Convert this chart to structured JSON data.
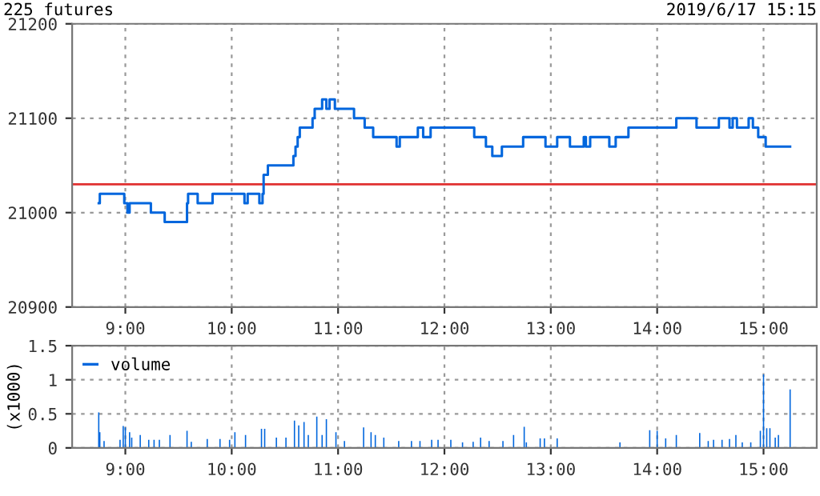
{
  "chart_data": [
    {
      "type": "step",
      "title": "225 futures",
      "annotations": [
        "2019/6/17 15:15"
      ],
      "x": [
        8.75,
        8.76,
        8.99,
        9.02,
        9.04,
        9.24,
        9.37,
        9.58,
        9.59,
        9.68,
        9.82,
        10.12,
        10.15,
        10.26,
        10.29,
        10.3,
        10.34,
        10.58,
        10.6,
        10.62,
        10.64,
        10.76,
        10.78,
        10.85,
        10.89,
        10.92,
        10.97,
        11.15,
        11.25,
        11.33,
        11.55,
        11.58,
        11.75,
        11.8,
        11.87,
        12.28,
        12.39,
        12.45,
        12.54,
        12.74,
        12.95,
        13.06,
        13.18,
        13.31,
        13.33,
        13.37,
        13.55,
        13.61,
        13.73,
        14.18,
        14.37,
        14.58,
        14.68,
        14.71,
        14.75,
        14.86,
        14.9,
        14.95,
        15.02,
        15.25
      ],
      "series": [
        {
          "color": "#0066dd",
          "values": [
            21010,
            21020,
            21010,
            21000,
            21010,
            21000,
            20990,
            21010,
            21020,
            21010,
            21020,
            21010,
            21020,
            21010,
            21020,
            21040,
            21050,
            21060,
            21070,
            21080,
            21090,
            21100,
            21110,
            21120,
            21110,
            21120,
            21110,
            21100,
            21090,
            21080,
            21070,
            21080,
            21090,
            21080,
            21090,
            21080,
            21070,
            21060,
            21070,
            21080,
            21070,
            21080,
            21070,
            21080,
            21070,
            21080,
            21070,
            21080,
            21090,
            21100,
            21090,
            21100,
            21090,
            21100,
            21090,
            21100,
            21090,
            21080,
            21070,
            21070
          ]
        }
      ],
      "xlim": [
        8.5,
        15.5
      ],
      "ylim": [
        20900,
        21200
      ],
      "xticks": [
        {
          "value": 9,
          "label": "9:00"
        },
        {
          "value": 10,
          "label": "10:00"
        },
        {
          "value": 11,
          "label": "11:00"
        },
        {
          "value": 12,
          "label": "12:00"
        },
        {
          "value": 13,
          "label": "13:00"
        },
        {
          "value": 14,
          "label": "14:00"
        },
        {
          "value": 15,
          "label": "15:00"
        }
      ],
      "yticks": [
        20900,
        21000,
        21100,
        21200
      ],
      "ref_lines": [
        {
          "axis": "y",
          "value": 21030,
          "label": null,
          "color": "#e03030"
        }
      ],
      "grid": true,
      "legend": false,
      "line_style": "solid"
    },
    {
      "type": "bar",
      "ylabel": "(x1000)",
      "x": [
        8.75,
        8.76,
        8.8,
        8.95,
        8.98,
        9.0,
        9.04,
        9.06,
        9.14,
        9.22,
        9.27,
        9.32,
        9.42,
        9.58,
        9.62,
        9.77,
        9.89,
        9.98,
        10.03,
        10.13,
        10.28,
        10.31,
        10.42,
        10.51,
        10.59,
        10.63,
        10.68,
        10.72,
        10.8,
        10.85,
        10.89,
        10.98,
        11.06,
        11.24,
        11.31,
        11.35,
        11.43,
        11.57,
        11.69,
        11.77,
        11.88,
        11.94,
        12.06,
        12.17,
        12.27,
        12.34,
        12.42,
        12.55,
        12.65,
        12.75,
        12.77,
        12.9,
        12.94,
        13.06,
        13.65,
        13.93,
        14.0,
        14.08,
        14.18,
        14.4,
        14.48,
        14.53,
        14.61,
        14.68,
        14.74,
        14.8,
        14.88,
        14.97,
        15.0,
        15.03,
        15.06,
        15.11,
        15.14,
        15.25
      ],
      "series": [
        {
          "name": "volume",
          "color": "#0066dd",
          "values": [
            0.52,
            0.23,
            0.1,
            0.12,
            0.32,
            0.3,
            0.23,
            0.15,
            0.19,
            0.12,
            0.12,
            0.12,
            0.19,
            0.25,
            0.09,
            0.13,
            0.13,
            0.12,
            0.23,
            0.19,
            0.28,
            0.28,
            0.15,
            0.15,
            0.4,
            0.33,
            0.38,
            0.19,
            0.46,
            0.19,
            0.42,
            0.23,
            0.1,
            0.3,
            0.23,
            0.19,
            0.15,
            0.1,
            0.1,
            0.1,
            0.12,
            0.12,
            0.12,
            0.08,
            0.09,
            0.15,
            0.1,
            0.1,
            0.19,
            0.31,
            0.08,
            0.14,
            0.14,
            0.14,
            0.08,
            0.26,
            0.25,
            0.14,
            0.19,
            0.22,
            0.1,
            0.12,
            0.12,
            0.13,
            0.19,
            0.08,
            0.08,
            0.25,
            1.08,
            0.29,
            0.29,
            0.15,
            0.19,
            0.86
          ]
        }
      ],
      "xlim": [
        8.5,
        15.5
      ],
      "ylim": [
        0,
        1.5
      ],
      "xticks": [
        {
          "value": 9,
          "label": "9:00"
        },
        {
          "value": 10,
          "label": "10:00"
        },
        {
          "value": 11,
          "label": "11:00"
        },
        {
          "value": 12,
          "label": "12:00"
        },
        {
          "value": 13,
          "label": "13:00"
        },
        {
          "value": 14,
          "label": "14:00"
        },
        {
          "value": 15,
          "label": "15:00"
        }
      ],
      "yticks": [
        0,
        0.5,
        1,
        1.5
      ],
      "grid": true,
      "legend": "top left"
    }
  ]
}
